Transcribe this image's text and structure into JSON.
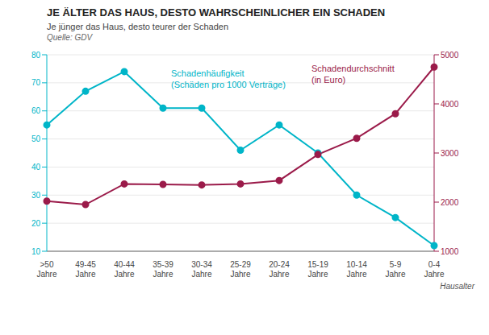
{
  "chart_data": {
    "type": "line",
    "title": "JE ÄLTER DAS HAUS, DESTO WAHRSCHEINLICHER EIN SCHADEN",
    "subtitle": "Je jünger das Haus, desto teurer der Schaden",
    "annotations": [
      "Quelle: GDV"
    ],
    "x_label": "Hausalter",
    "categories": [
      ">50\nJahre",
      "49-45\nJahre",
      "40-44\nJahre",
      "35-39\nJahre",
      "30-34\nJahre",
      "25-29\nJahre",
      "20-24\nJahre",
      "15-19\nJahre",
      "10-14\nJahre",
      "5-9\nJahre",
      "0-4\nJahre"
    ],
    "series": [
      {
        "name": "Schadenhäufigkeit\n(Schäden pro 1000 Verträge)",
        "color": "#00B5C8",
        "marker": "circle",
        "values": [
          55,
          67,
          74,
          61,
          61,
          46,
          55,
          45,
          30,
          22,
          12
        ]
      },
      {
        "name": "Schadendurchschnitt\n(in Euro)",
        "color": "#9B1B4A",
        "marker": "circle",
        "axis": "y2",
        "values": [
          2020,
          1950,
          2370,
          2360,
          2350,
          2370,
          2440,
          2970,
          3300,
          3800,
          4750
        ]
      }
    ],
    "ylim": [
      10,
      80
    ],
    "yticks": [
      10,
      20,
      30,
      40,
      50,
      60,
      70,
      80
    ],
    "y2lim": [
      1000,
      5000
    ],
    "y2ticks": [
      1000,
      2000,
      3000,
      4000,
      5000
    ],
    "grid": true
  }
}
